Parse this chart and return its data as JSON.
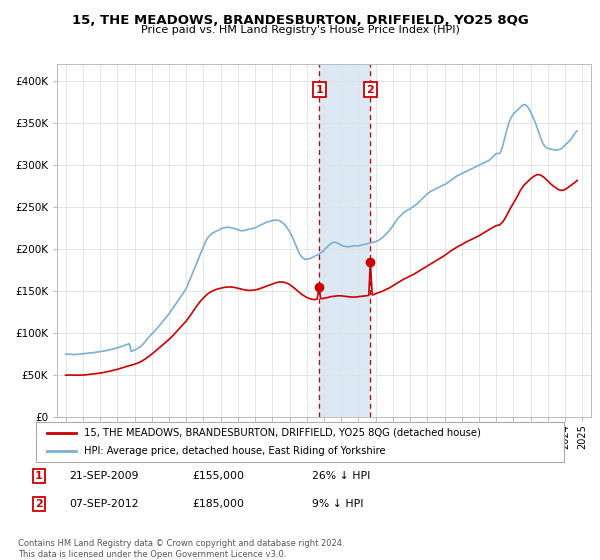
{
  "title": "15, THE MEADOWS, BRANDESBURTON, DRIFFIELD, YO25 8QG",
  "subtitle": "Price paid vs. HM Land Registry's House Price Index (HPI)",
  "legend_line1": "15, THE MEADOWS, BRANDESBURTON, DRIFFIELD, YO25 8QG (detached house)",
  "legend_line2": "HPI: Average price, detached house, East Riding of Yorkshire",
  "footer": "Contains HM Land Registry data © Crown copyright and database right 2024.\nThis data is licensed under the Open Government Licence v3.0.",
  "transaction1_date": "21-SEP-2009",
  "transaction1_price": "£155,000",
  "transaction1_hpi": "26% ↓ HPI",
  "transaction2_date": "07-SEP-2012",
  "transaction2_price": "£185,000",
  "transaction2_hpi": "9% ↓ HPI",
  "hpi_color": "#7bafd4",
  "price_color": "#cc0000",
  "shade_color": "#dce9f5",
  "marker1_x": 2009.72,
  "marker1_y": 155000,
  "marker2_x": 2012.69,
  "marker2_y": 185000,
  "shade_x1": 2009.72,
  "shade_x2": 2012.69,
  "ylim_min": 0,
  "ylim_max": 420000,
  "xlim_min": 1994.5,
  "xlim_max": 2025.5,
  "yticks": [
    0,
    50000,
    100000,
    150000,
    200000,
    250000,
    300000,
    350000,
    400000
  ],
  "ytick_labels": [
    "£0",
    "£50K",
    "£100K",
    "£150K",
    "£200K",
    "£250K",
    "£300K",
    "£350K",
    "£400K"
  ],
  "hpi_data": [
    [
      1995.0,
      75000
    ],
    [
      1995.1,
      75200
    ],
    [
      1995.2,
      75100
    ],
    [
      1995.3,
      74800
    ],
    [
      1995.4,
      74600
    ],
    [
      1995.5,
      74500
    ],
    [
      1995.6,
      74700
    ],
    [
      1995.7,
      74900
    ],
    [
      1995.8,
      75100
    ],
    [
      1995.9,
      75300
    ],
    [
      1996.0,
      75500
    ],
    [
      1996.1,
      75700
    ],
    [
      1996.2,
      75900
    ],
    [
      1996.3,
      76100
    ],
    [
      1996.4,
      76300
    ],
    [
      1996.5,
      76500
    ],
    [
      1996.6,
      76800
    ],
    [
      1996.7,
      77100
    ],
    [
      1996.8,
      77400
    ],
    [
      1996.9,
      77700
    ],
    [
      1997.0,
      78000
    ],
    [
      1997.1,
      78300
    ],
    [
      1997.2,
      78700
    ],
    [
      1997.3,
      79100
    ],
    [
      1997.4,
      79500
    ],
    [
      1997.5,
      80000
    ],
    [
      1997.6,
      80500
    ],
    [
      1997.7,
      81000
    ],
    [
      1997.8,
      81500
    ],
    [
      1997.9,
      82000
    ],
    [
      1998.0,
      82500
    ],
    [
      1998.1,
      83200
    ],
    [
      1998.2,
      83900
    ],
    [
      1998.3,
      84600
    ],
    [
      1998.4,
      85300
    ],
    [
      1998.5,
      86000
    ],
    [
      1998.6,
      86800
    ],
    [
      1998.7,
      87600
    ],
    [
      1998.8,
      78400
    ],
    [
      1998.9,
      79200
    ],
    [
      1999.0,
      80000
    ],
    [
      1999.1,
      81000
    ],
    [
      1999.2,
      82000
    ],
    [
      1999.3,
      83500
    ],
    [
      1999.4,
      85000
    ],
    [
      1999.5,
      87000
    ],
    [
      1999.6,
      89500
    ],
    [
      1999.7,
      92000
    ],
    [
      1999.8,
      94500
    ],
    [
      1999.9,
      97000
    ],
    [
      2000.0,
      99000
    ],
    [
      2000.1,
      101000
    ],
    [
      2000.2,
      103000
    ],
    [
      2000.3,
      105500
    ],
    [
      2000.4,
      108000
    ],
    [
      2000.5,
      110500
    ],
    [
      2000.6,
      113000
    ],
    [
      2000.7,
      115500
    ],
    [
      2000.8,
      118000
    ],
    [
      2000.9,
      120500
    ],
    [
      2001.0,
      123000
    ],
    [
      2001.1,
      126000
    ],
    [
      2001.2,
      129000
    ],
    [
      2001.3,
      132000
    ],
    [
      2001.4,
      135000
    ],
    [
      2001.5,
      138000
    ],
    [
      2001.6,
      141000
    ],
    [
      2001.7,
      144000
    ],
    [
      2001.8,
      147000
    ],
    [
      2001.9,
      150000
    ],
    [
      2002.0,
      153000
    ],
    [
      2002.1,
      158000
    ],
    [
      2002.2,
      163000
    ],
    [
      2002.3,
      168000
    ],
    [
      2002.4,
      173000
    ],
    [
      2002.5,
      178000
    ],
    [
      2002.6,
      183000
    ],
    [
      2002.7,
      188000
    ],
    [
      2002.8,
      193000
    ],
    [
      2002.9,
      198000
    ],
    [
      2003.0,
      203000
    ],
    [
      2003.1,
      208000
    ],
    [
      2003.2,
      212000
    ],
    [
      2003.3,
      215000
    ],
    [
      2003.4,
      217000
    ],
    [
      2003.5,
      219000
    ],
    [
      2003.6,
      220000
    ],
    [
      2003.7,
      221000
    ],
    [
      2003.8,
      222000
    ],
    [
      2003.9,
      223000
    ],
    [
      2004.0,
      224000
    ],
    [
      2004.1,
      225000
    ],
    [
      2004.2,
      225500
    ],
    [
      2004.3,
      226000
    ],
    [
      2004.4,
      226000
    ],
    [
      2004.5,
      226000
    ],
    [
      2004.6,
      225500
    ],
    [
      2004.7,
      225000
    ],
    [
      2004.8,
      224500
    ],
    [
      2004.9,
      224000
    ],
    [
      2005.0,
      223000
    ],
    [
      2005.1,
      222500
    ],
    [
      2005.2,
      222000
    ],
    [
      2005.3,
      222000
    ],
    [
      2005.4,
      222500
    ],
    [
      2005.5,
      223000
    ],
    [
      2005.6,
      223500
    ],
    [
      2005.7,
      224000
    ],
    [
      2005.8,
      224500
    ],
    [
      2005.9,
      225000
    ],
    [
      2006.0,
      225500
    ],
    [
      2006.1,
      226500
    ],
    [
      2006.2,
      227500
    ],
    [
      2006.3,
      228500
    ],
    [
      2006.4,
      229500
    ],
    [
      2006.5,
      230500
    ],
    [
      2006.6,
      231500
    ],
    [
      2006.7,
      232500
    ],
    [
      2006.8,
      233000
    ],
    [
      2006.9,
      233500
    ],
    [
      2007.0,
      234000
    ],
    [
      2007.1,
      234500
    ],
    [
      2007.2,
      234800
    ],
    [
      2007.3,
      234500
    ],
    [
      2007.4,
      234000
    ],
    [
      2007.5,
      233000
    ],
    [
      2007.6,
      231500
    ],
    [
      2007.7,
      229500
    ],
    [
      2007.8,
      227000
    ],
    [
      2007.9,
      224000
    ],
    [
      2008.0,
      221000
    ],
    [
      2008.1,
      217000
    ],
    [
      2008.2,
      213000
    ],
    [
      2008.3,
      208000
    ],
    [
      2008.4,
      203000
    ],
    [
      2008.5,
      198000
    ],
    [
      2008.6,
      194000
    ],
    [
      2008.7,
      191000
    ],
    [
      2008.8,
      189000
    ],
    [
      2008.9,
      188000
    ],
    [
      2009.0,
      188000
    ],
    [
      2009.1,
      188500
    ],
    [
      2009.2,
      189000
    ],
    [
      2009.3,
      190000
    ],
    [
      2009.4,
      191000
    ],
    [
      2009.5,
      192000
    ],
    [
      2009.6,
      193000
    ],
    [
      2009.7,
      194000
    ],
    [
      2009.8,
      195500
    ],
    [
      2009.9,
      197000
    ],
    [
      2010.0,
      199000
    ],
    [
      2010.1,
      201000
    ],
    [
      2010.2,
      203000
    ],
    [
      2010.3,
      205000
    ],
    [
      2010.4,
      206500
    ],
    [
      2010.5,
      208000
    ],
    [
      2010.6,
      208500
    ],
    [
      2010.7,
      208000
    ],
    [
      2010.8,
      207000
    ],
    [
      2010.9,
      206000
    ],
    [
      2011.0,
      205000
    ],
    [
      2011.1,
      204000
    ],
    [
      2011.2,
      203500
    ],
    [
      2011.3,
      203000
    ],
    [
      2011.4,
      203000
    ],
    [
      2011.5,
      203000
    ],
    [
      2011.6,
      203500
    ],
    [
      2011.7,
      204000
    ],
    [
      2011.8,
      204000
    ],
    [
      2011.9,
      204000
    ],
    [
      2012.0,
      204000
    ],
    [
      2012.1,
      204500
    ],
    [
      2012.2,
      205000
    ],
    [
      2012.3,
      205500
    ],
    [
      2012.4,
      206000
    ],
    [
      2012.5,
      206500
    ],
    [
      2012.6,
      207000
    ],
    [
      2012.7,
      207500
    ],
    [
      2012.8,
      208000
    ],
    [
      2012.9,
      208500
    ],
    [
      2013.0,
      209000
    ],
    [
      2013.1,
      210000
    ],
    [
      2013.2,
      211000
    ],
    [
      2013.3,
      212500
    ],
    [
      2013.4,
      214000
    ],
    [
      2013.5,
      216000
    ],
    [
      2013.6,
      218000
    ],
    [
      2013.7,
      220000
    ],
    [
      2013.8,
      222500
    ],
    [
      2013.9,
      225000
    ],
    [
      2014.0,
      228000
    ],
    [
      2014.1,
      231000
    ],
    [
      2014.2,
      234000
    ],
    [
      2014.3,
      237000
    ],
    [
      2014.4,
      239000
    ],
    [
      2014.5,
      241000
    ],
    [
      2014.6,
      243000
    ],
    [
      2014.7,
      244500
    ],
    [
      2014.8,
      246000
    ],
    [
      2014.9,
      247000
    ],
    [
      2015.0,
      248000
    ],
    [
      2015.1,
      249500
    ],
    [
      2015.2,
      251000
    ],
    [
      2015.3,
      252500
    ],
    [
      2015.4,
      254000
    ],
    [
      2015.5,
      256000
    ],
    [
      2015.6,
      258000
    ],
    [
      2015.7,
      260000
    ],
    [
      2015.8,
      262000
    ],
    [
      2015.9,
      264000
    ],
    [
      2016.0,
      266000
    ],
    [
      2016.1,
      267500
    ],
    [
      2016.2,
      269000
    ],
    [
      2016.3,
      270000
    ],
    [
      2016.4,
      271000
    ],
    [
      2016.5,
      272000
    ],
    [
      2016.6,
      273000
    ],
    [
      2016.7,
      274000
    ],
    [
      2016.8,
      275000
    ],
    [
      2016.9,
      276000
    ],
    [
      2017.0,
      277000
    ],
    [
      2017.1,
      278000
    ],
    [
      2017.2,
      279500
    ],
    [
      2017.3,
      281000
    ],
    [
      2017.4,
      282500
    ],
    [
      2017.5,
      284000
    ],
    [
      2017.6,
      285500
    ],
    [
      2017.7,
      287000
    ],
    [
      2017.8,
      288000
    ],
    [
      2017.9,
      289000
    ],
    [
      2018.0,
      290000
    ],
    [
      2018.1,
      291000
    ],
    [
      2018.2,
      292000
    ],
    [
      2018.3,
      293000
    ],
    [
      2018.4,
      294000
    ],
    [
      2018.5,
      295000
    ],
    [
      2018.6,
      296000
    ],
    [
      2018.7,
      297000
    ],
    [
      2018.8,
      298000
    ],
    [
      2018.9,
      299000
    ],
    [
      2019.0,
      300000
    ],
    [
      2019.1,
      301000
    ],
    [
      2019.2,
      302000
    ],
    [
      2019.3,
      303000
    ],
    [
      2019.4,
      304000
    ],
    [
      2019.5,
      305000
    ],
    [
      2019.6,
      306000
    ],
    [
      2019.7,
      308000
    ],
    [
      2019.8,
      310000
    ],
    [
      2019.9,
      312000
    ],
    [
      2020.0,
      314000
    ],
    [
      2020.1,
      314000
    ],
    [
      2020.2,
      314000
    ],
    [
      2020.3,
      318000
    ],
    [
      2020.4,
      325000
    ],
    [
      2020.5,
      333000
    ],
    [
      2020.6,
      341000
    ],
    [
      2020.7,
      348000
    ],
    [
      2020.8,
      354000
    ],
    [
      2020.9,
      358000
    ],
    [
      2021.0,
      361000
    ],
    [
      2021.1,
      363000
    ],
    [
      2021.2,
      365000
    ],
    [
      2021.3,
      367000
    ],
    [
      2021.4,
      369000
    ],
    [
      2021.5,
      371000
    ],
    [
      2021.6,
      372000
    ],
    [
      2021.7,
      372000
    ],
    [
      2021.8,
      370000
    ],
    [
      2021.9,
      367000
    ],
    [
      2022.0,
      363000
    ],
    [
      2022.1,
      358500
    ],
    [
      2022.2,
      354000
    ],
    [
      2022.3,
      349000
    ],
    [
      2022.4,
      343000
    ],
    [
      2022.5,
      337000
    ],
    [
      2022.6,
      331500
    ],
    [
      2022.7,
      326000
    ],
    [
      2022.8,
      323000
    ],
    [
      2022.9,
      321000
    ],
    [
      2023.0,
      320000
    ],
    [
      2023.1,
      319500
    ],
    [
      2023.2,
      319000
    ],
    [
      2023.3,
      318500
    ],
    [
      2023.4,
      318000
    ],
    [
      2023.5,
      318000
    ],
    [
      2023.6,
      318500
    ],
    [
      2023.7,
      319000
    ],
    [
      2023.8,
      320000
    ],
    [
      2023.9,
      322000
    ],
    [
      2024.0,
      324000
    ],
    [
      2024.1,
      326000
    ],
    [
      2024.2,
      328000
    ],
    [
      2024.3,
      330000
    ],
    [
      2024.4,
      333000
    ],
    [
      2024.5,
      336000
    ],
    [
      2024.6,
      339000
    ],
    [
      2024.7,
      341000
    ]
  ],
  "price_data": [
    [
      1995.0,
      50000
    ],
    [
      1995.2,
      50200
    ],
    [
      1995.4,
      50100
    ],
    [
      1995.6,
      49900
    ],
    [
      1995.8,
      50000
    ],
    [
      1996.0,
      50200
    ],
    [
      1996.2,
      50500
    ],
    [
      1996.4,
      51000
    ],
    [
      1996.6,
      51500
    ],
    [
      1996.8,
      52000
    ],
    [
      1997.0,
      52500
    ],
    [
      1997.2,
      53200
    ],
    [
      1997.4,
      54000
    ],
    [
      1997.6,
      55000
    ],
    [
      1997.8,
      56000
    ],
    [
      1998.0,
      57000
    ],
    [
      1998.2,
      58200
    ],
    [
      1998.4,
      59500
    ],
    [
      1998.6,
      60800
    ],
    [
      1998.8,
      62000
    ],
    [
      1999.0,
      63000
    ],
    [
      1999.2,
      64500
    ],
    [
      1999.4,
      66500
    ],
    [
      1999.6,
      69000
    ],
    [
      1999.8,
      72000
    ],
    [
      2000.0,
      75000
    ],
    [
      2000.2,
      78500
    ],
    [
      2000.4,
      82000
    ],
    [
      2000.6,
      85500
    ],
    [
      2000.8,
      89000
    ],
    [
      2001.0,
      92500
    ],
    [
      2001.2,
      96500
    ],
    [
      2001.4,
      101000
    ],
    [
      2001.6,
      105500
    ],
    [
      2001.8,
      110000
    ],
    [
      2002.0,
      114500
    ],
    [
      2002.2,
      120000
    ],
    [
      2002.4,
      126000
    ],
    [
      2002.6,
      132000
    ],
    [
      2002.8,
      137500
    ],
    [
      2003.0,
      142000
    ],
    [
      2003.2,
      146000
    ],
    [
      2003.4,
      149000
    ],
    [
      2003.6,
      151000
    ],
    [
      2003.8,
      152500
    ],
    [
      2004.0,
      153500
    ],
    [
      2004.2,
      154500
    ],
    [
      2004.4,
      155000
    ],
    [
      2004.6,
      155000
    ],
    [
      2004.8,
      154500
    ],
    [
      2005.0,
      153500
    ],
    [
      2005.2,
      152500
    ],
    [
      2005.4,
      151500
    ],
    [
      2005.6,
      151000
    ],
    [
      2005.8,
      151000
    ],
    [
      2006.0,
      151500
    ],
    [
      2006.2,
      152500
    ],
    [
      2006.4,
      154000
    ],
    [
      2006.6,
      155500
    ],
    [
      2006.8,
      157000
    ],
    [
      2007.0,
      158500
    ],
    [
      2007.2,
      160000
    ],
    [
      2007.4,
      161000
    ],
    [
      2007.6,
      161000
    ],
    [
      2007.8,
      160000
    ],
    [
      2008.0,
      158000
    ],
    [
      2008.2,
      155000
    ],
    [
      2008.4,
      151500
    ],
    [
      2008.6,
      148000
    ],
    [
      2008.8,
      145000
    ],
    [
      2009.0,
      142500
    ],
    [
      2009.2,
      141000
    ],
    [
      2009.4,
      140000
    ],
    [
      2009.6,
      140500
    ],
    [
      2009.72,
      155000
    ],
    [
      2009.8,
      141500
    ],
    [
      2009.9,
      141000
    ],
    [
      2010.0,
      141500
    ],
    [
      2010.2,
      142500
    ],
    [
      2010.4,
      143500
    ],
    [
      2010.6,
      144000
    ],
    [
      2010.8,
      144500
    ],
    [
      2011.0,
      144500
    ],
    [
      2011.2,
      144000
    ],
    [
      2011.4,
      143500
    ],
    [
      2011.6,
      143000
    ],
    [
      2011.8,
      143000
    ],
    [
      2012.0,
      143500
    ],
    [
      2012.2,
      144000
    ],
    [
      2012.4,
      144500
    ],
    [
      2012.6,
      145000
    ],
    [
      2012.69,
      185000
    ],
    [
      2012.8,
      145500
    ],
    [
      2012.9,
      146000
    ],
    [
      2013.0,
      147000
    ],
    [
      2013.2,
      148500
    ],
    [
      2013.4,
      150000
    ],
    [
      2013.6,
      152000
    ],
    [
      2013.8,
      154000
    ],
    [
      2014.0,
      156500
    ],
    [
      2014.2,
      159000
    ],
    [
      2014.4,
      161500
    ],
    [
      2014.6,
      164000
    ],
    [
      2014.8,
      166000
    ],
    [
      2015.0,
      168000
    ],
    [
      2015.2,
      170000
    ],
    [
      2015.4,
      172500
    ],
    [
      2015.6,
      175000
    ],
    [
      2015.8,
      177500
    ],
    [
      2016.0,
      180000
    ],
    [
      2016.2,
      182500
    ],
    [
      2016.4,
      185000
    ],
    [
      2016.6,
      187500
    ],
    [
      2016.8,
      190000
    ],
    [
      2017.0,
      192500
    ],
    [
      2017.2,
      195500
    ],
    [
      2017.4,
      198500
    ],
    [
      2017.6,
      201000
    ],
    [
      2017.8,
      203500
    ],
    [
      2018.0,
      205500
    ],
    [
      2018.2,
      208000
    ],
    [
      2018.4,
      210000
    ],
    [
      2018.6,
      212000
    ],
    [
      2018.8,
      214000
    ],
    [
      2019.0,
      216000
    ],
    [
      2019.2,
      218500
    ],
    [
      2019.4,
      221000
    ],
    [
      2019.6,
      223500
    ],
    [
      2019.8,
      226000
    ],
    [
      2020.0,
      228000
    ],
    [
      2020.2,
      229000
    ],
    [
      2020.4,
      233000
    ],
    [
      2020.6,
      240000
    ],
    [
      2020.8,
      248000
    ],
    [
      2021.0,
      255000
    ],
    [
      2021.2,
      262000
    ],
    [
      2021.4,
      270000
    ],
    [
      2021.6,
      276000
    ],
    [
      2021.8,
      280000
    ],
    [
      2022.0,
      284000
    ],
    [
      2022.2,
      287000
    ],
    [
      2022.4,
      289000
    ],
    [
      2022.6,
      288000
    ],
    [
      2022.8,
      285000
    ],
    [
      2023.0,
      281000
    ],
    [
      2023.2,
      277000
    ],
    [
      2023.4,
      274000
    ],
    [
      2023.6,
      271000
    ],
    [
      2023.8,
      270000
    ],
    [
      2024.0,
      271000
    ],
    [
      2024.2,
      274000
    ],
    [
      2024.4,
      277000
    ],
    [
      2024.6,
      280000
    ],
    [
      2024.7,
      282000
    ]
  ]
}
